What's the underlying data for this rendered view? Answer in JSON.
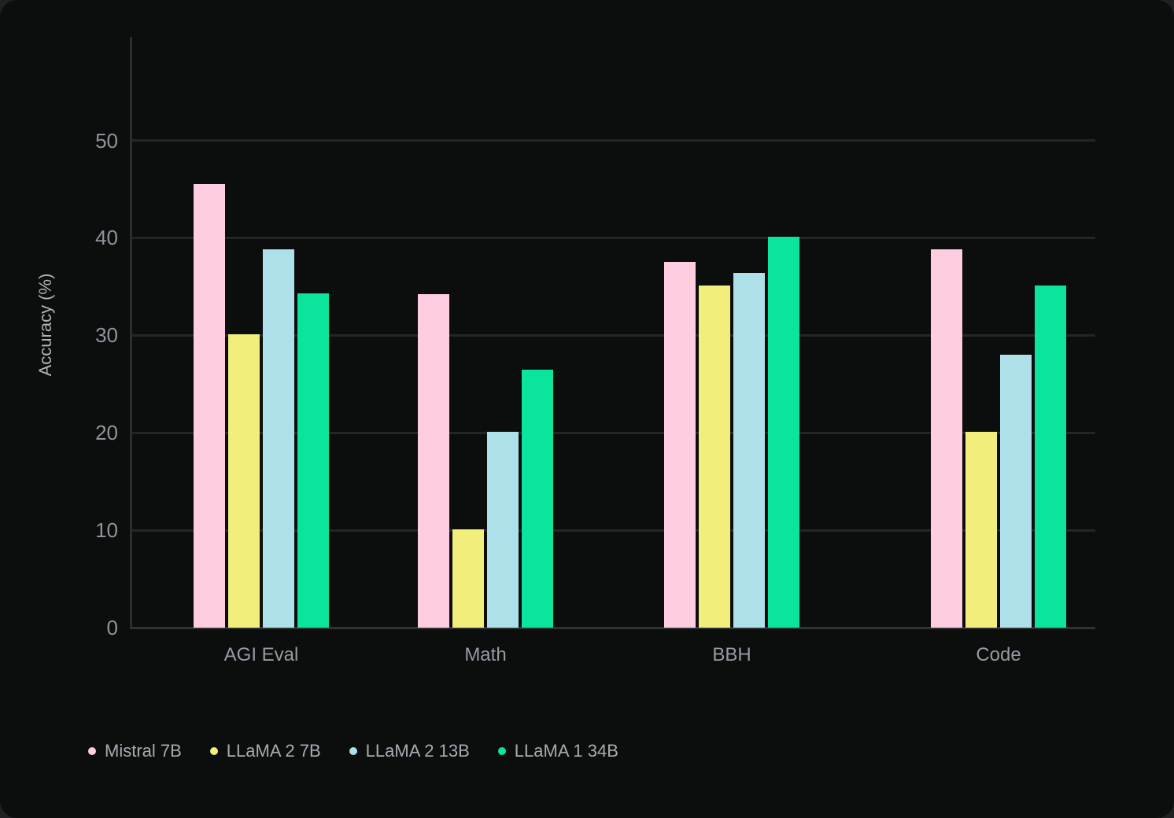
{
  "chart_data": {
    "type": "bar",
    "title": "",
    "xlabel": "",
    "ylabel": "Accuracy (%)",
    "ylim": [
      0,
      60
    ],
    "yticks": [
      0,
      10,
      20,
      30,
      40,
      50
    ],
    "grid": "horizontal",
    "legend_position": "bottom-left",
    "categories": [
      "AGI Eval",
      "Math",
      "BBH",
      "Code"
    ],
    "series": [
      {
        "name": "Mistral 7B",
        "color": "#FFCDE2",
        "values": [
          45.5,
          34.2,
          37.5,
          38.8
        ]
      },
      {
        "name": "LLaMA 2 7B",
        "color": "#F1EE7B",
        "values": [
          30.1,
          10.1,
          35.1,
          20.1
        ]
      },
      {
        "name": "LLaMA 2 13B",
        "color": "#AEE0EA",
        "values": [
          38.8,
          20.1,
          36.4,
          28.0
        ]
      },
      {
        "name": "LLaMA 1 34B",
        "color": "#0AE49C",
        "values": [
          34.3,
          26.5,
          40.1,
          35.1
        ]
      }
    ],
    "background_color": "#0c0d0d",
    "page_background_color": "#1f2122"
  }
}
